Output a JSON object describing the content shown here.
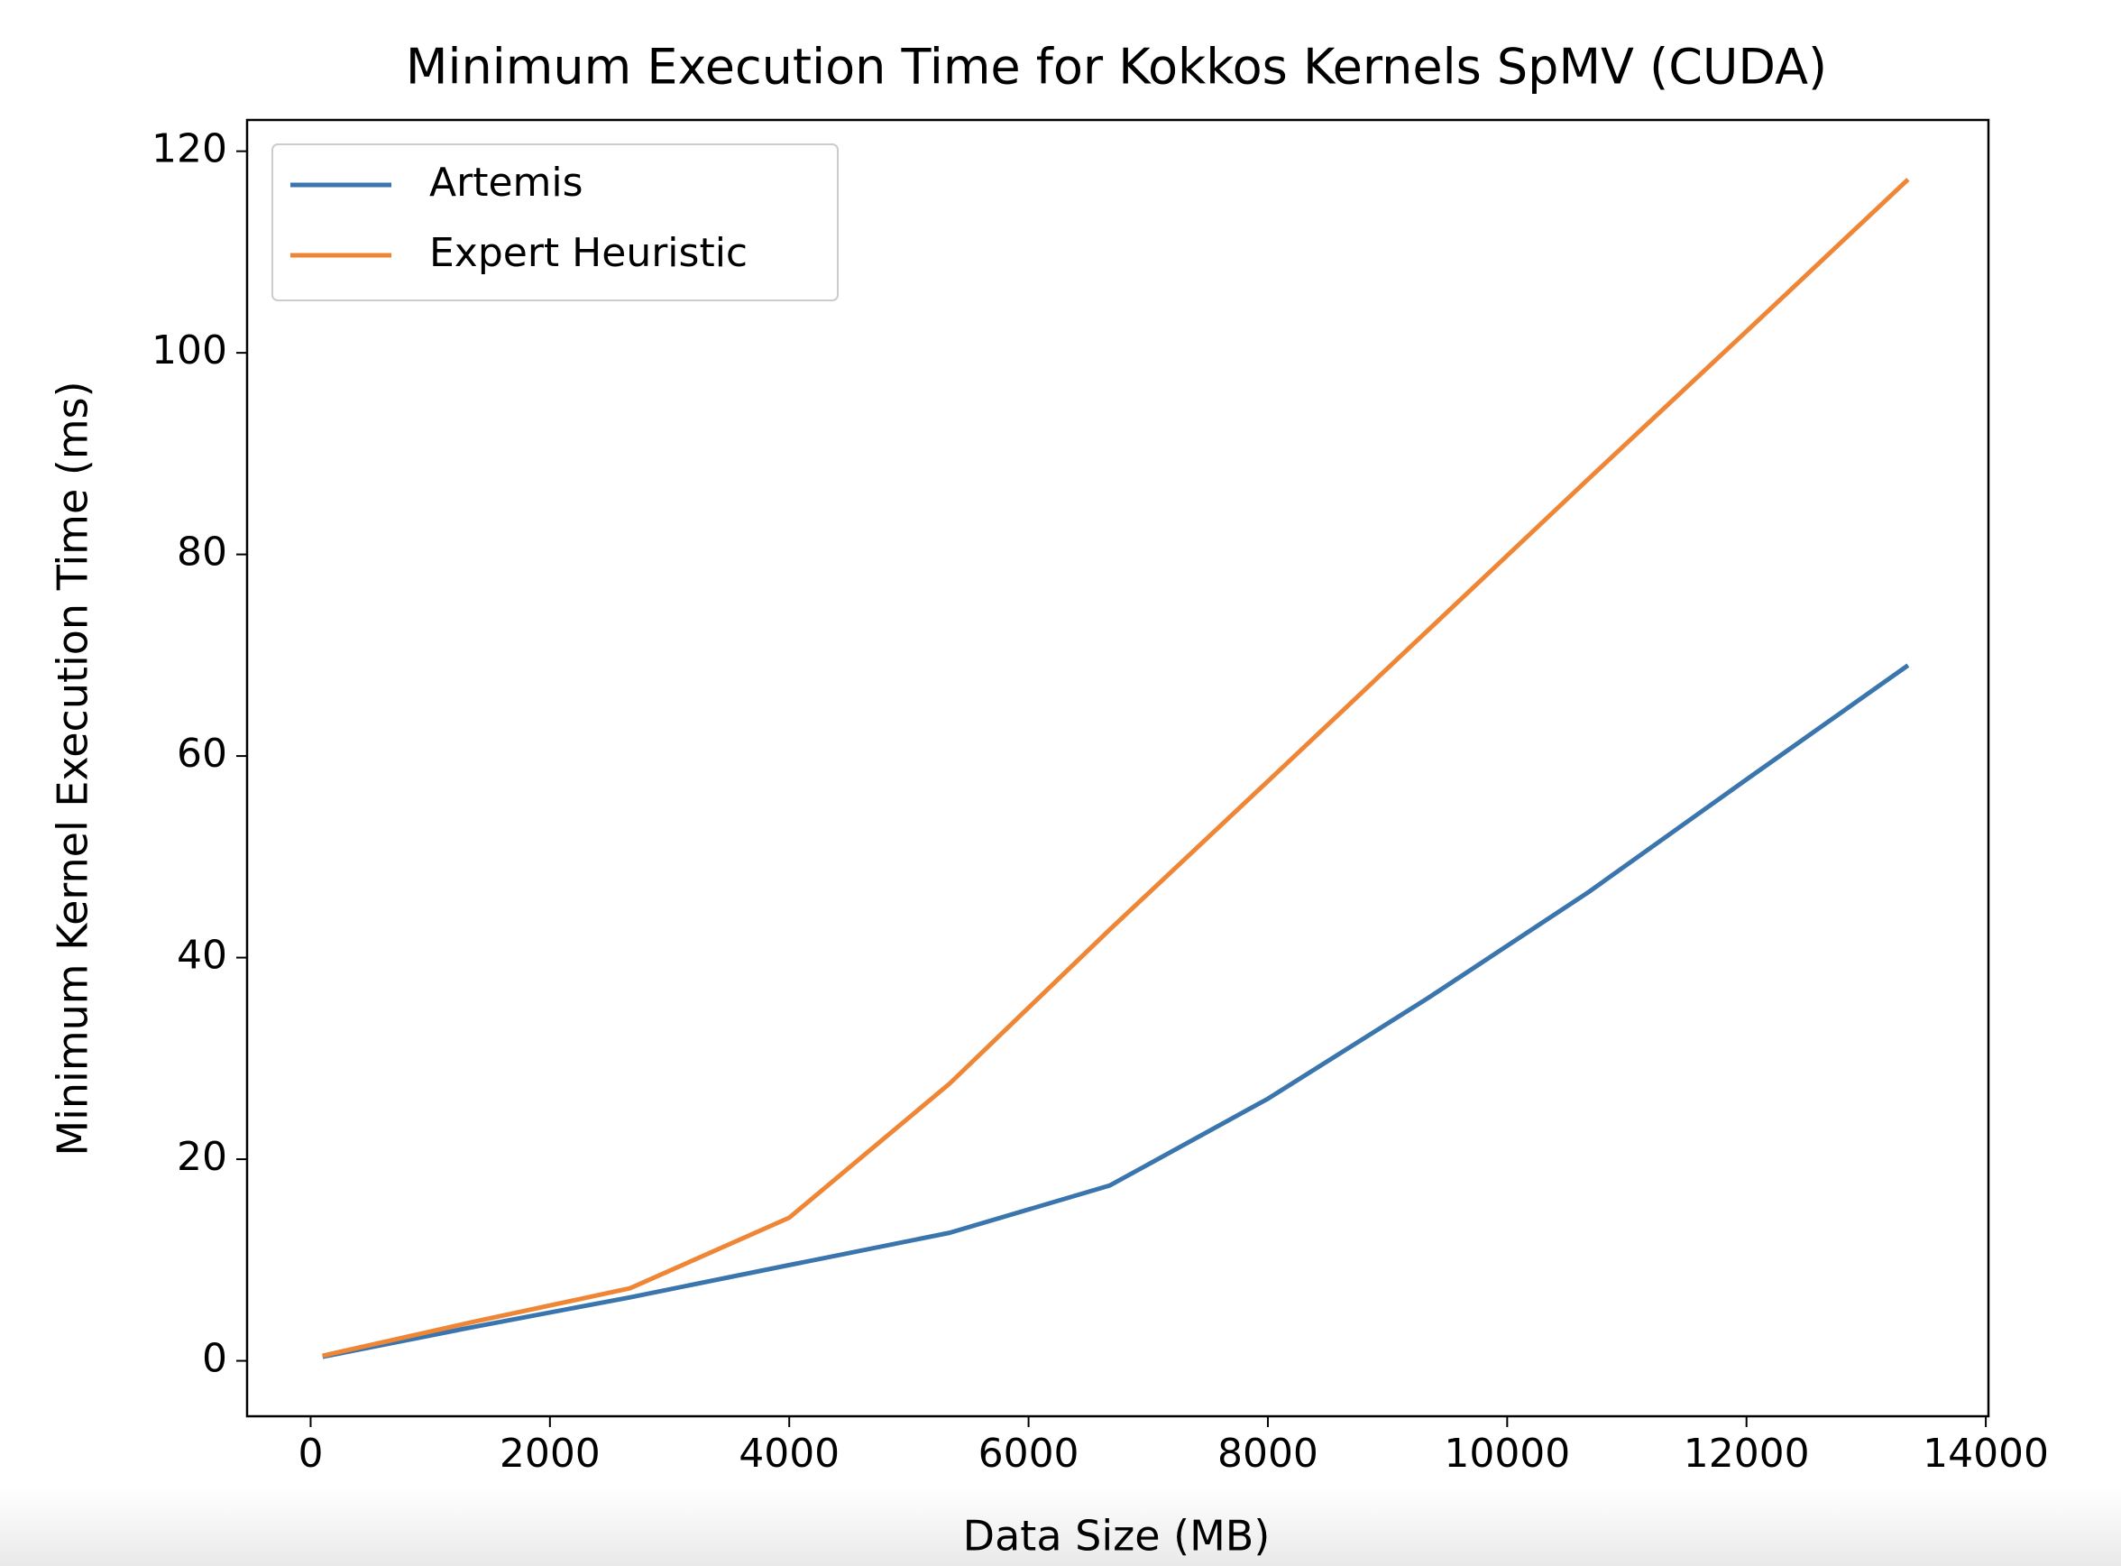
{
  "chart_data": {
    "type": "line",
    "title": "Minimum Execution Time for Kokkos Kernels SpMV (CUDA)",
    "x_label": "Data Size (MB)",
    "y_label": "Minimum Kernel Execution Time (ms)",
    "x": [
      100,
      1335,
      2670,
      4000,
      5340,
      6680,
      8000,
      9340,
      10680,
      12015,
      13350
    ],
    "series": [
      {
        "name": "Artemis",
        "color": "#3a75ae",
        "values": [
          0.4,
          3.3,
          6.3,
          9.5,
          12.7,
          17.4,
          26,
          36,
          46.5,
          57.8,
          69
        ]
      },
      {
        "name": "Expert Heuristic",
        "color": "#ef8636",
        "values": [
          0.5,
          3.8,
          7.2,
          14.2,
          27.5,
          42.8,
          57.5,
          72.5,
          87.5,
          102.3,
          117.2
        ]
      }
    ],
    "xlim": [
      -531,
      14022
    ],
    "ylim": [
      -5.5,
      123.1
    ],
    "xticks": [
      0,
      2000,
      4000,
      6000,
      8000,
      10000,
      12000,
      14000
    ],
    "yticks": [
      0,
      20,
      40,
      60,
      80,
      100,
      120
    ],
    "legend": "upper left"
  }
}
